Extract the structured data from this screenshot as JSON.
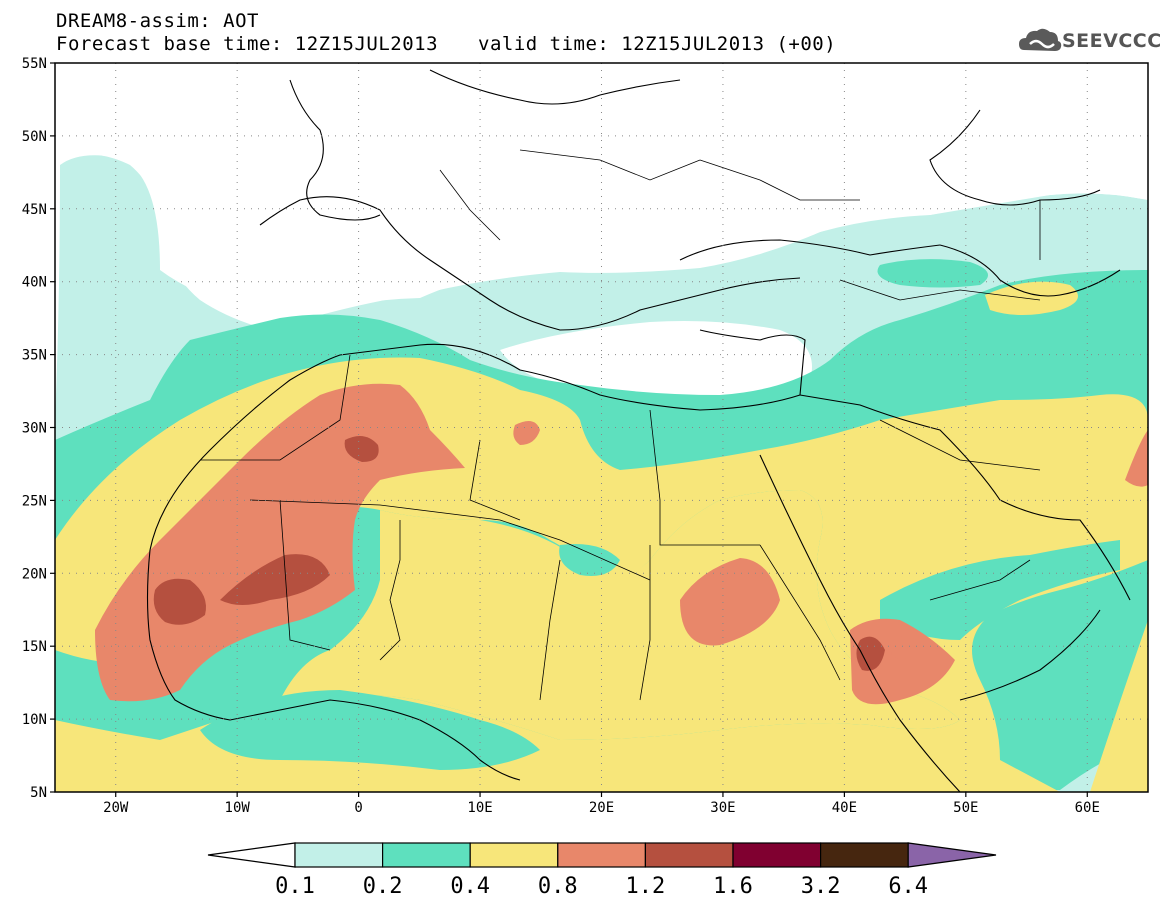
{
  "header": {
    "title": "DREAM8-assim: AOT",
    "base_time": "Forecast base time: 12Z15JUL2013",
    "valid_time": "valid time: 12Z15JUL2013 (+00)"
  },
  "logo": {
    "text": "SEEVCCC",
    "icon": "cloud-icon"
  },
  "map": {
    "lat_labels": [
      "55N",
      "50N",
      "45N",
      "40N",
      "35N",
      "30N",
      "25N",
      "20N",
      "15N",
      "10N",
      "5N"
    ],
    "lon_labels": [
      "20W",
      "10W",
      "0",
      "10E",
      "20E",
      "30E",
      "40E",
      "50E",
      "60E"
    ],
    "lat_range": [
      5,
      55
    ],
    "lon_range": [
      -25,
      65
    ],
    "grid": "dotted"
  },
  "legend": {
    "labels": [
      "0.1",
      "0.2",
      "0.4",
      "0.8",
      "1.2",
      "1.6",
      "3.2",
      "6.4"
    ],
    "colors": [
      "#ffffff",
      "#c2f0e8",
      "#5ee0be",
      "#f7e67a",
      "#e8876a",
      "#b5503f",
      "#800030",
      "#46260f",
      "#8a64a8"
    ]
  }
}
